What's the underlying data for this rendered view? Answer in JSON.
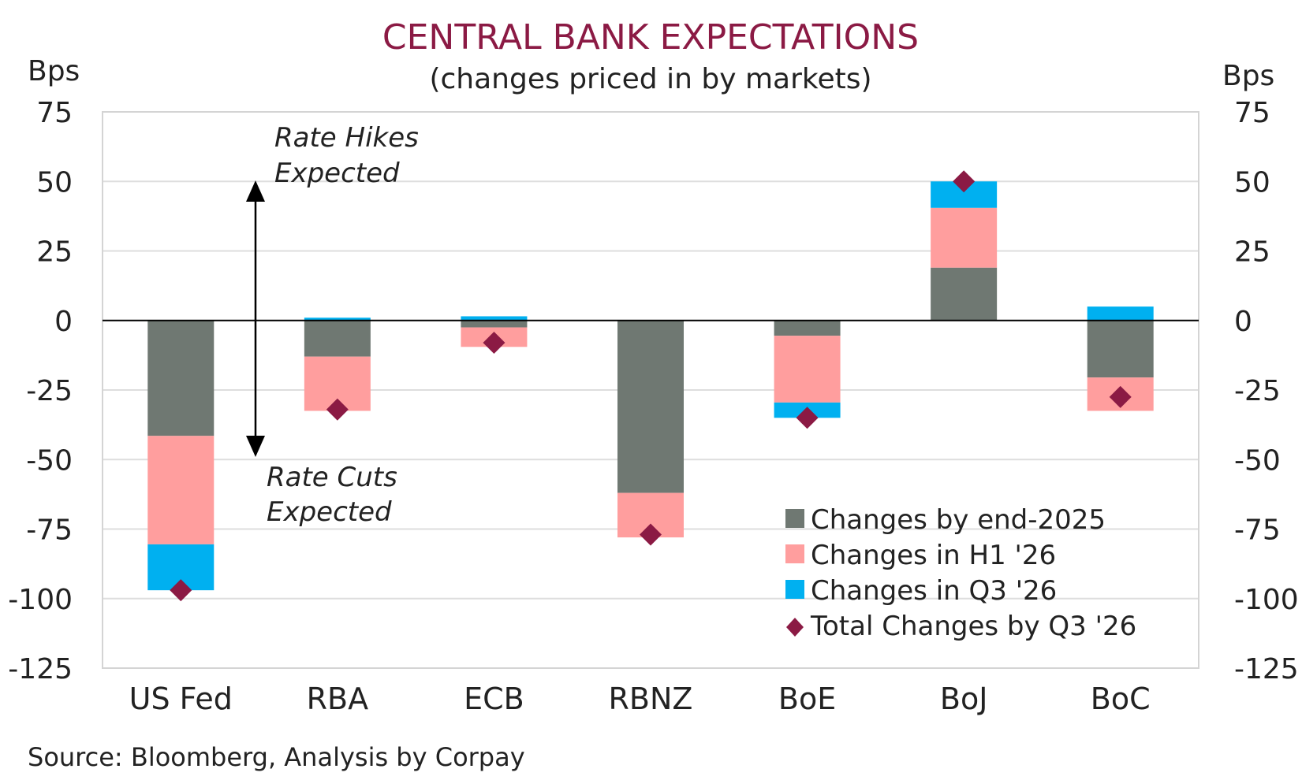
{
  "chart_data": {
    "type": "bar",
    "title": "CENTRAL BANK EXPECTATIONS",
    "subtitle": "(changes priced in by markets)",
    "ylabel_left": "Bps",
    "ylabel_right": "Bps",
    "ylim": [
      -125,
      75
    ],
    "yticks": [
      "75",
      "50",
      "25",
      "0",
      "-25",
      "-50",
      "-75",
      "-100",
      "-125"
    ],
    "grid": true,
    "legend_position": "bottom-right",
    "categories": [
      "US Fed",
      "RBA",
      "ECB",
      "RBNZ",
      "BoE",
      "BoJ",
      "BoC"
    ],
    "series": [
      {
        "name": "Changes by end-2025",
        "kind": "stacked-bar",
        "color": "#6F7872",
        "values": [
          -41.5,
          -13,
          -2.5,
          -62,
          -5.5,
          19,
          -20.5
        ]
      },
      {
        "name": "Changes in H1 '26",
        "kind": "stacked-bar",
        "color": "#FF9E9E",
        "values": [
          -39,
          -19.5,
          -7,
          -16,
          -24,
          21.5,
          -12
        ]
      },
      {
        "name": "Changes in Q3 '26",
        "kind": "stacked-bar",
        "color": "#00B0F0",
        "values": [
          -16.5,
          1,
          1.5,
          0,
          -5.5,
          9.5,
          5
        ]
      },
      {
        "name": "Total Changes by Q3 '26",
        "kind": "marker",
        "color": "#8B1A44",
        "values": [
          -97,
          -32,
          -8,
          -77,
          -35,
          50,
          -27.5
        ]
      }
    ],
    "annotations": [
      {
        "line1": "Rate Hikes",
        "line2": "Expected"
      },
      {
        "line1": "Rate Cuts",
        "line2": "Expected"
      }
    ],
    "source": "Source: Bloomberg, Analysis by Corpay"
  }
}
